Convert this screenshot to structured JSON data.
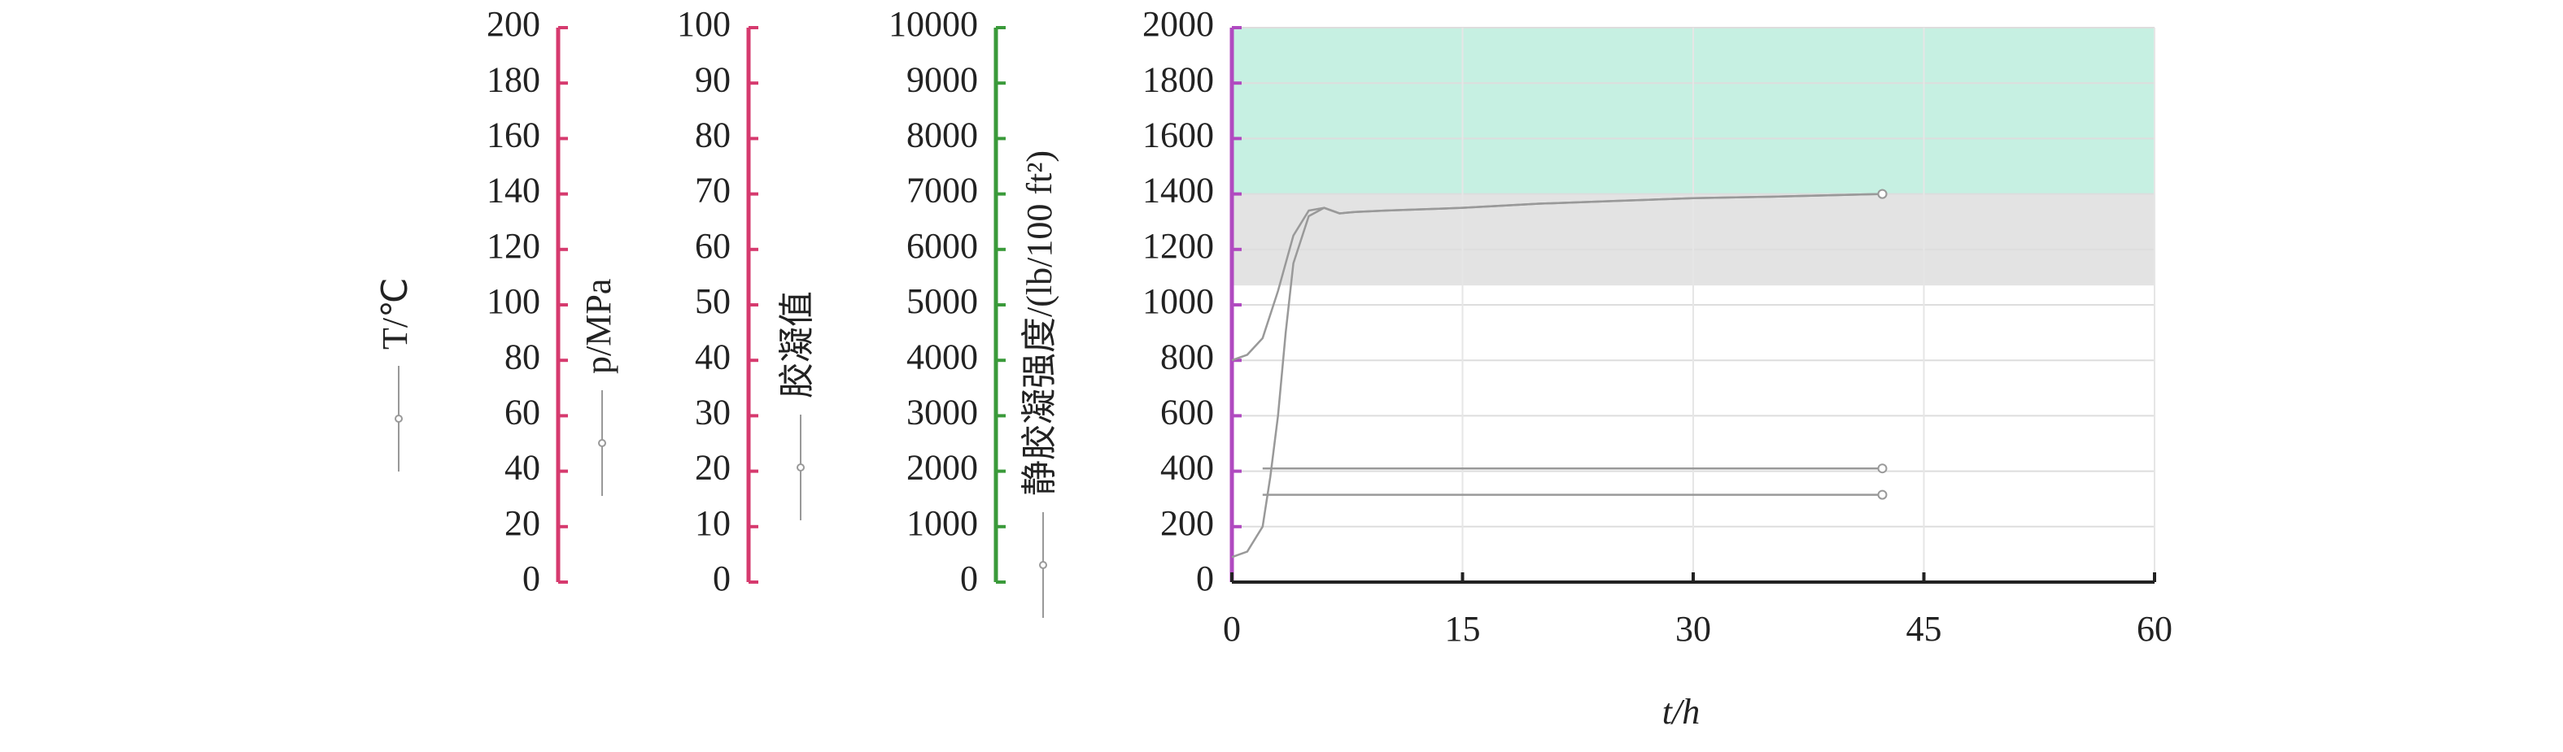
{
  "chart_data": {
    "type": "line",
    "x_label": "t/h",
    "xlim": [
      0,
      60
    ],
    "xticks": [
      0,
      15,
      30,
      45,
      60
    ],
    "grid": true,
    "axes": [
      {
        "title": "T/℃",
        "ylim": [
          0,
          200
        ],
        "yticks": [
          0,
          20,
          40,
          60,
          80,
          100,
          120,
          140,
          160,
          180,
          200
        ],
        "color": "#d63a6e"
      },
      {
        "title": "p/MPa",
        "ylim": [
          0,
          100
        ],
        "yticks": [
          0,
          10,
          20,
          30,
          40,
          50,
          60,
          70,
          80,
          90,
          100
        ],
        "color": "#d63a6e"
      },
      {
        "title": "胶凝值",
        "ylim": [
          0,
          10000
        ],
        "yticks": [
          0,
          1000,
          2000,
          3000,
          4000,
          5000,
          6000,
          7000,
          8000,
          9000,
          10000
        ],
        "color": "#3a9a3a"
      },
      {
        "title": "静胶凝强度/(lb/100 ft²)",
        "ylim": [
          0,
          2000
        ],
        "yticks": [
          0,
          200,
          400,
          600,
          800,
          1000,
          1200,
          1400,
          1600,
          1800,
          2000
        ],
        "color": "#b04ac0"
      }
    ],
    "bands": [
      {
        "range": [
          1400,
          2000
        ],
        "color": "#c6f0e2"
      },
      {
        "range": [
          1070,
          1400
        ],
        "color": "#e3e3e3"
      }
    ],
    "series": [
      {
        "name": "T",
        "axis": 0,
        "color": "#999999",
        "x": [
          0,
          1,
          2,
          3,
          4,
          5,
          6,
          7,
          8,
          10,
          15,
          20,
          25,
          30,
          35,
          42.3
        ],
        "values": [
          80,
          82,
          88,
          105,
          125,
          134,
          135,
          133,
          133.5,
          134,
          135,
          136.5,
          137.5,
          138.5,
          139,
          140
        ]
      },
      {
        "name": "p",
        "axis": 1,
        "color": "#999999",
        "x": [
          2,
          42.3
        ],
        "values": [
          20.5,
          20.5
        ]
      },
      {
        "name": "胶凝值",
        "axis": 2,
        "color": "#999999",
        "x": [
          2,
          42.3
        ],
        "values": [
          1575,
          1575
        ]
      },
      {
        "name": "静胶凝强度",
        "axis": 3,
        "color": "#999999",
        "x": [
          0,
          1,
          2,
          2.5,
          3,
          3.5,
          4,
          5,
          6,
          7,
          8,
          10,
          15,
          20,
          25,
          30,
          35,
          42.3
        ],
        "values": [
          90,
          110,
          200,
          380,
          600,
          900,
          1150,
          1320,
          1350,
          1330,
          1335,
          1340,
          1350,
          1365,
          1375,
          1385,
          1390,
          1400
        ]
      }
    ]
  }
}
